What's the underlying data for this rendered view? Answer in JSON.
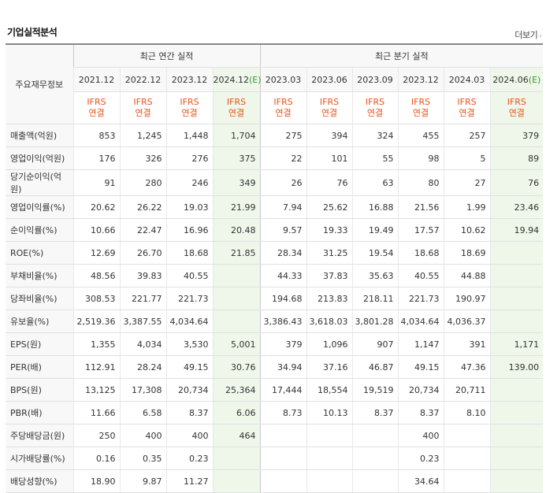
{
  "title": "기업실적분석",
  "more_label": "더보기",
  "more_arrow": "›",
  "corner_label": "주요재무정보",
  "annual_group": "최근 연간 실적",
  "quarter_group": "최근 분기 실적",
  "periods": [
    "2021.12",
    "2022.12",
    "2023.12",
    "2024.12",
    "2023.03",
    "2023.06",
    "2023.09",
    "2023.12",
    "2024.03",
    "2024.06"
  ],
  "est_suffix": "(E)",
  "ifrs_line1": "IFRS",
  "ifrs_line2": "연결",
  "rows": [
    {
      "label": "매출액(억원)",
      "values": [
        "853",
        "1,245",
        "1,448",
        "1,704",
        "275",
        "394",
        "324",
        "455",
        "257",
        "379"
      ]
    },
    {
      "label": "영업이익(억원)",
      "values": [
        "176",
        "326",
        "276",
        "375",
        "22",
        "101",
        "55",
        "98",
        "5",
        "89"
      ]
    },
    {
      "label": "당기순이익(억원)",
      "values": [
        "91",
        "280",
        "246",
        "349",
        "26",
        "76",
        "63",
        "80",
        "27",
        "76"
      ]
    },
    {
      "label": "영업이익률(%)",
      "values": [
        "20.62",
        "26.22",
        "19.03",
        "21.99",
        "7.94",
        "25.62",
        "16.88",
        "21.56",
        "1.99",
        "23.46"
      ]
    },
    {
      "label": "순이익률(%)",
      "values": [
        "10.66",
        "22.47",
        "16.96",
        "20.48",
        "9.57",
        "19.33",
        "19.49",
        "17.57",
        "10.62",
        "19.94"
      ]
    },
    {
      "label": "ROE(%)",
      "values": [
        "12.69",
        "26.70",
        "18.68",
        "21.85",
        "28.34",
        "31.25",
        "19.54",
        "18.68",
        "18.69",
        ""
      ]
    },
    {
      "label": "부채비율(%)",
      "values": [
        "48.56",
        "39.83",
        "40.55",
        "",
        "44.33",
        "37.83",
        "35.63",
        "40.55",
        "44.88",
        ""
      ]
    },
    {
      "label": "당좌비율(%)",
      "values": [
        "308.53",
        "221.77",
        "221.73",
        "",
        "194.68",
        "213.83",
        "218.11",
        "221.73",
        "190.97",
        ""
      ]
    },
    {
      "label": "유보율(%)",
      "values": [
        "2,519.36",
        "3,387.55",
        "4,034.64",
        "",
        "3,386.43",
        "3,618.03",
        "3,801.28",
        "4,034.64",
        "4,036.37",
        ""
      ]
    },
    {
      "label": "EPS(원)",
      "values": [
        "1,355",
        "4,034",
        "3,530",
        "5,001",
        "379",
        "1,096",
        "907",
        "1,147",
        "391",
        "1,171"
      ]
    },
    {
      "label": "PER(배)",
      "values": [
        "112.91",
        "28.24",
        "49.15",
        "30.76",
        "34.94",
        "37.16",
        "46.87",
        "49.15",
        "47.36",
        "139.00"
      ]
    },
    {
      "label": "BPS(원)",
      "values": [
        "13,125",
        "17,308",
        "20,734",
        "25,364",
        "17,444",
        "18,554",
        "19,519",
        "20,734",
        "20,711",
        ""
      ]
    },
    {
      "label": "PBR(배)",
      "values": [
        "11.66",
        "6.58",
        "8.37",
        "6.06",
        "8.73",
        "10.13",
        "8.37",
        "8.37",
        "8.10",
        ""
      ]
    },
    {
      "label": "주당배당금(원)",
      "values": [
        "250",
        "400",
        "400",
        "464",
        "",
        "",
        "",
        "400",
        "",
        ""
      ]
    },
    {
      "label": "시가배당률(%)",
      "values": [
        "0.16",
        "0.35",
        "0.23",
        "",
        "",
        "",
        "",
        "0.23",
        "",
        ""
      ]
    },
    {
      "label": "배당성향(%)",
      "values": [
        "18.90",
        "9.87",
        "11.27",
        "",
        "",
        "",
        "",
        "34.64",
        "",
        ""
      ]
    }
  ]
}
